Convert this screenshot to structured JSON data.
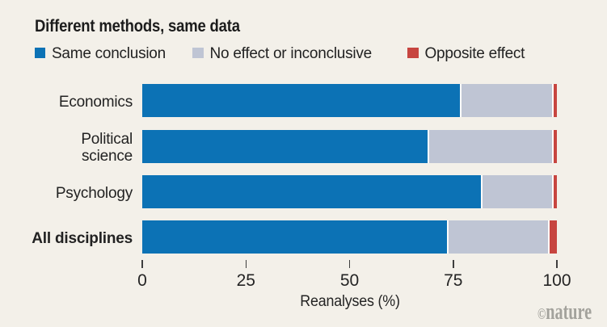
{
  "title": "Different methods, same data",
  "legend": {
    "items": [
      {
        "label": "Same conclusion",
        "color": "#0c72b5"
      },
      {
        "label": "No effect or inconclusive",
        "color": "#bfc5d4"
      },
      {
        "label": "Opposite effect",
        "color": "#c74540"
      }
    ]
  },
  "chart_data": {
    "type": "bar",
    "orientation": "horizontal",
    "stacked": true,
    "title": "Different methods, same data",
    "categories": [
      "Economics",
      "Political science",
      "Psychology",
      "All disciplines"
    ],
    "category_display": [
      "Economics",
      "Political\nscience",
      "Psychology",
      "All disciplines"
    ],
    "category_bold": [
      false,
      false,
      false,
      true
    ],
    "series": [
      {
        "name": "Same conclusion",
        "color": "#0c72b5",
        "values": [
          77.0,
          69.2,
          82.1,
          73.9
        ]
      },
      {
        "name": "No effect or inconclusive",
        "color": "#bfc5d4",
        "values": [
          22.2,
          30.0,
          17.1,
          24.4
        ]
      },
      {
        "name": "Opposite effect",
        "color": "#c74540",
        "values": [
          0.8,
          0.8,
          0.8,
          1.7
        ]
      }
    ],
    "xlabel": "Reanalyses (%)",
    "xticks": [
      "0",
      "25",
      "50",
      "75",
      "100"
    ],
    "xlim": [
      0,
      100
    ],
    "grid": false,
    "legend_position": "top"
  },
  "watermark": {
    "copyright": "©",
    "text": "nature",
    "color": "#a3a29c"
  },
  "colors": {
    "background": "#f3f0e9",
    "segment_gap": "#fdfdfb",
    "tick": "#3e3e3e",
    "text": "#222222",
    "title_text": "#1c1c1c"
  }
}
